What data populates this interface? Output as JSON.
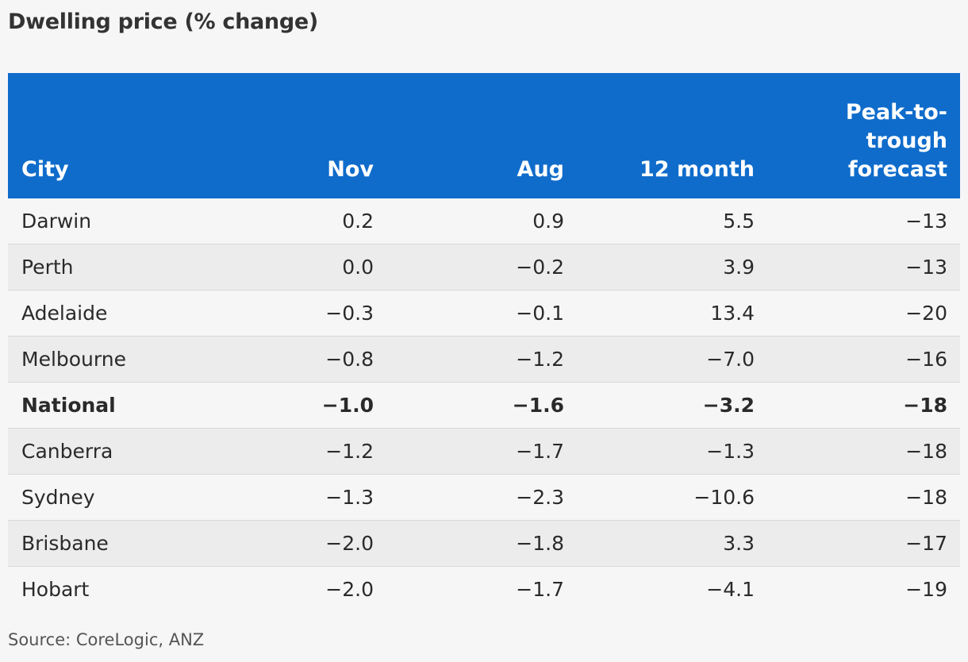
{
  "chart_data": {
    "type": "table",
    "title": "Dwelling price (% change)",
    "columns": [
      "City",
      "Nov",
      "Aug",
      "12 month",
      "Peak-to-trough forecast"
    ],
    "rows": [
      {
        "city": "Darwin",
        "nov": "0.2",
        "aug": "0.9",
        "m12": "5.5",
        "peak_to_trough": "−13",
        "bold": false
      },
      {
        "city": "Perth",
        "nov": "0.0",
        "aug": "−0.2",
        "m12": "3.9",
        "peak_to_trough": "−13",
        "bold": false
      },
      {
        "city": "Adelaide",
        "nov": "−0.3",
        "aug": "−0.1",
        "m12": "13.4",
        "peak_to_trough": "−20",
        "bold": false
      },
      {
        "city": "Melbourne",
        "nov": "−0.8",
        "aug": "−1.2",
        "m12": "−7.0",
        "peak_to_trough": "−16",
        "bold": false
      },
      {
        "city": "National",
        "nov": "−1.0",
        "aug": "−1.6",
        "m12": "−3.2",
        "peak_to_trough": "−18",
        "bold": true
      },
      {
        "city": "Canberra",
        "nov": "−1.2",
        "aug": "−1.7",
        "m12": "−1.3",
        "peak_to_trough": "−18",
        "bold": false
      },
      {
        "city": "Sydney",
        "nov": "−1.3",
        "aug": "−2.3",
        "m12": "−10.6",
        "peak_to_trough": "−18",
        "bold": false
      },
      {
        "city": "Brisbane",
        "nov": "−2.0",
        "aug": "−1.8",
        "m12": "3.3",
        "peak_to_trough": "−17",
        "bold": false
      },
      {
        "city": "Hobart",
        "nov": "−2.0",
        "aug": "−1.7",
        "m12": "−4.1",
        "peak_to_trough": "−19",
        "bold": false
      }
    ],
    "source": "Source: CoreLogic, ANZ"
  },
  "colors": {
    "header_background": "#0f6ccb",
    "header_text": "#ffffff",
    "row_odd": "#f6f6f6",
    "row_even": "#ececec"
  }
}
